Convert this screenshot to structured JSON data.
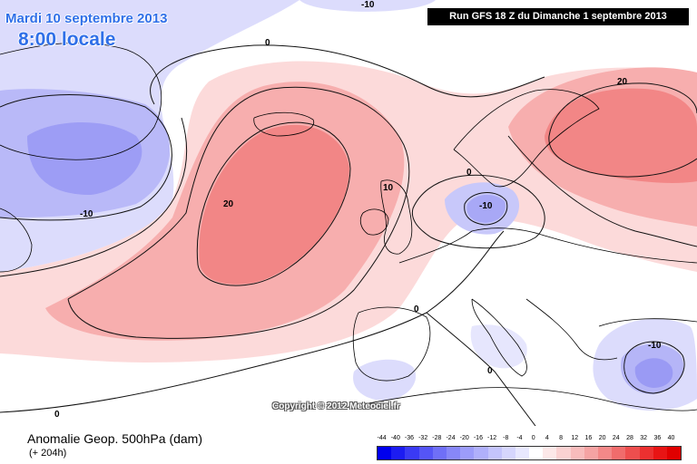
{
  "header": {
    "date": "Mardi 10 septembre 2013",
    "time": "8:00 locale",
    "run": "Run GFS 18 Z du Dimanche 1 septembre 2013"
  },
  "footer": {
    "title": "Anomalie Geop. 500hPa (dam)",
    "lead": "(+ 204h)",
    "copyright": "Copyright © 2012 Meteociel.fr"
  },
  "contour_labels": [
    "-10",
    "0",
    "-10",
    "20",
    "10",
    "0",
    "-10",
    "20",
    "0",
    "0",
    "-10",
    "0"
  ],
  "scale": {
    "ticks": [
      "-44",
      "-40",
      "-36",
      "-32",
      "-28",
      "-24",
      "-20",
      "-16",
      "-12",
      "-8",
      "-4",
      "0",
      "4",
      "8",
      "12",
      "16",
      "20",
      "24",
      "28",
      "32",
      "36",
      "40"
    ],
    "colors": [
      "#0000ee",
      "#1c1cf2",
      "#3a3af4",
      "#5555f6",
      "#6f6ff7",
      "#8787f8",
      "#9c9cfa",
      "#b0b0fb",
      "#c4c4fc",
      "#d6d6fd",
      "#e8e8fe",
      "#ffffff",
      "#fce8e8",
      "#fad2d2",
      "#f8bcbc",
      "#f5a3a3",
      "#f38888",
      "#f06c6c",
      "#ee4e4e",
      "#ec3030",
      "#e81414",
      "#e00000"
    ]
  },
  "colors": {
    "title_blue": "#2f6fe8",
    "anomaly_pos_light": "#fbd6d6",
    "anomaly_pos_mid": "#f7aaaa",
    "anomaly_pos_strong": "#f27e7e",
    "anomaly_neg_light": "#dcdcfc",
    "anomaly_neg_mid": "#b5b5f7",
    "anomaly_neg_strong": "#9a9af4"
  }
}
